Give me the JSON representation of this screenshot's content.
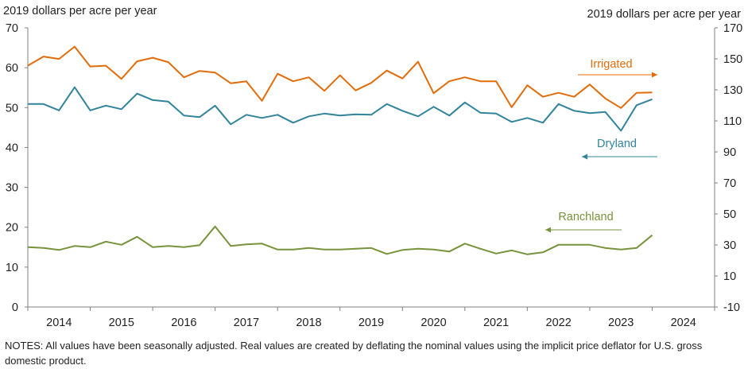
{
  "chart_data": {
    "type": "line",
    "left_axis_label": "2019 dollars per acre per year",
    "right_axis_label": "2019 dollars per acre per year",
    "left_ylim": [
      0,
      70
    ],
    "left_yticks": [
      "0",
      "10",
      "20",
      "30",
      "40",
      "50",
      "60",
      "70"
    ],
    "right_ylim": [
      -10,
      170
    ],
    "right_yticks": [
      "-10",
      "10",
      "30",
      "50",
      "70",
      "90",
      "110",
      "130",
      "150",
      "170"
    ],
    "x_range": [
      2014.0,
      2025.0
    ],
    "x_labels": [
      "2014",
      "2015",
      "2016",
      "2017",
      "2018",
      "2019",
      "2020",
      "2021",
      "2022",
      "2023",
      "2024"
    ],
    "series": [
      {
        "name": "Irrigated",
        "axis": "left",
        "color": "#E36C0A",
        "legend_arrow": "right",
        "values": [
          60.5,
          62.8,
          62.2,
          65.3,
          60.3,
          60.5,
          57.2,
          61.6,
          62.5,
          61.4,
          57.6,
          59.2,
          58.8,
          56.1,
          56.6,
          51.7,
          58.5,
          56.6,
          57.6,
          54.2,
          58.1,
          54.3,
          56.2,
          59.3,
          57.3,
          61.5,
          53.6,
          56.6,
          57.6,
          56.6,
          56.6,
          50.1,
          55.6,
          52.7,
          53.7,
          52.7,
          55.8,
          52.3,
          49.9,
          53.7,
          53.8
        ]
      },
      {
        "name": "Dryland",
        "axis": "left",
        "color": "#31849B",
        "legend_arrow": "left",
        "values": [
          50.9,
          50.9,
          49.3,
          55.1,
          49.3,
          50.5,
          49.6,
          53.5,
          51.9,
          51.5,
          48.0,
          47.6,
          50.5,
          45.8,
          48.2,
          47.4,
          48.2,
          46.2,
          47.8,
          48.5,
          48.0,
          48.3,
          48.2,
          50.9,
          49.2,
          47.8,
          50.2,
          48.0,
          51.3,
          48.7,
          48.5,
          46.4,
          47.4,
          46.2,
          50.9,
          49.2,
          48.6,
          48.9,
          44.2,
          50.6,
          52.1
        ]
      },
      {
        "name": "Ranchland",
        "axis": "left",
        "color": "#77933C",
        "legend_arrow": "left",
        "values": [
          15.0,
          14.8,
          14.3,
          15.3,
          15.0,
          16.4,
          15.6,
          17.6,
          15.0,
          15.3,
          15.0,
          15.5,
          20.2,
          15.3,
          15.7,
          15.9,
          14.4,
          14.4,
          14.8,
          14.4,
          14.4,
          14.6,
          14.8,
          13.3,
          14.3,
          14.6,
          14.4,
          13.9,
          15.9,
          14.6,
          13.4,
          14.2,
          13.2,
          13.7,
          15.6,
          15.6,
          15.6,
          14.8,
          14.4,
          14.8,
          18.0
        ]
      }
    ]
  },
  "notes": "NOTES: All values have been seasonally adjusted. Real values are created by deflating the nominal values using the implicit price deflator for U.S. gross domestic product."
}
